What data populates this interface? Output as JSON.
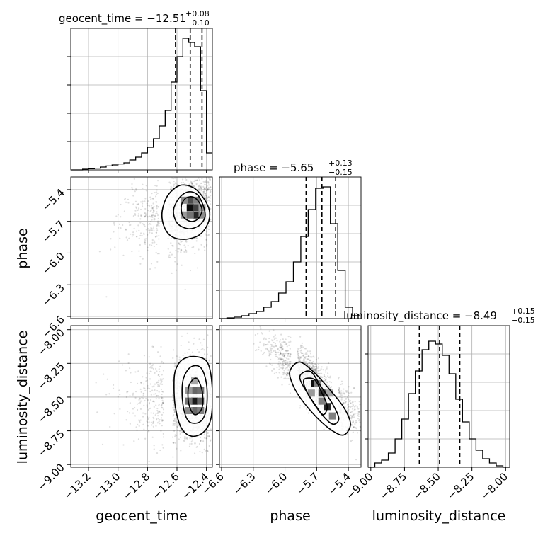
{
  "chart_data": {
    "type": "corner",
    "parameters": [
      "geocent_time",
      "phase",
      "luminosity_distance"
    ],
    "grid": true,
    "diagonal": [
      {
        "param": "geocent_time",
        "title_prefix": "geocent_time = −12.51",
        "upper": "+0.08",
        "lower": "−0.10",
        "median": -12.51,
        "quantiles": [
          -12.61,
          -12.51,
          -12.43
        ],
        "xlim": [
          -13.32,
          -12.36
        ],
        "bins_x": [
          -13.32,
          -13.28,
          -13.24,
          -13.2,
          -13.16,
          -13.12,
          -13.08,
          -13.04,
          -13.0,
          -12.96,
          -12.92,
          -12.88,
          -12.84,
          -12.8,
          -12.76,
          -12.72,
          -12.68,
          -12.64,
          -12.6,
          -12.56,
          -12.52,
          -12.48,
          -12.44,
          -12.4,
          -12.36
        ],
        "counts": [
          0,
          0,
          0.5,
          0.8,
          1.2,
          2,
          2.8,
          3.5,
          4.2,
          5,
          7,
          9,
          12,
          16,
          22,
          31,
          42,
          62,
          80,
          93,
          90,
          87,
          56,
          12
        ],
        "ymax": 100
      },
      {
        "param": "phase",
        "title_prefix": "phase = −5.65",
        "upper": "+0.13",
        "lower": "−0.15",
        "median": -5.65,
        "quantiles": [
          -5.8,
          -5.65,
          -5.52
        ],
        "xlim": [
          -6.62,
          -5.28
        ],
        "bins_x": [
          -6.62,
          -6.55,
          -6.48,
          -6.41,
          -6.34,
          -6.27,
          -6.2,
          -6.13,
          -6.06,
          -5.99,
          -5.92,
          -5.85,
          -5.78,
          -5.71,
          -5.64,
          -5.57,
          -5.5,
          -5.43,
          -5.36,
          -5.29
        ],
        "counts": [
          0,
          0.5,
          1,
          2,
          3.5,
          5,
          8,
          12,
          18,
          26,
          40,
          58,
          77,
          92,
          93,
          67,
          34,
          8,
          2
        ],
        "ymax": 100
      },
      {
        "param": "luminosity_distance",
        "title_prefix": "luminosity_distance = −8.49",
        "upper": "+0.15",
        "lower": "−0.15",
        "median": -8.49,
        "quantiles": [
          -8.64,
          -8.49,
          -8.34
        ],
        "xlim": [
          -9.02,
          -7.97
        ],
        "bins_x": [
          -9.02,
          -8.97,
          -8.92,
          -8.87,
          -8.82,
          -8.77,
          -8.72,
          -8.67,
          -8.62,
          -8.57,
          -8.52,
          -8.47,
          -8.42,
          -8.37,
          -8.32,
          -8.27,
          -8.22,
          -8.17,
          -8.12,
          -8.07,
          -8.02,
          -7.97
        ],
        "counts": [
          0,
          3,
          5,
          10,
          20,
          34,
          52,
          68,
          83,
          89,
          87,
          79,
          66,
          48,
          32,
          20,
          12,
          6,
          3,
          1,
          0
        ],
        "ymax": 100
      }
    ],
    "axes": {
      "geocent_time": {
        "ticks": [
          -13.2,
          -13.0,
          -12.8,
          -12.6,
          -12.4
        ],
        "labels": [
          "−13.2",
          "−13.0",
          "−12.8",
          "−12.6",
          "−12.4"
        ]
      },
      "phase": {
        "ticks": [
          -6.6,
          -6.3,
          -6.0,
          -5.7,
          -5.4
        ],
        "labels": [
          "−6.6",
          "−6.3",
          "−6.0",
          "−5.7",
          "−5.4"
        ]
      },
      "luminosity_distance": {
        "ticks": [
          -9.0,
          -8.75,
          -8.5,
          -8.25,
          -8.0
        ],
        "labels": [
          "−9.00",
          "−8.75",
          "−8.50",
          "−8.25",
          "−8.00"
        ]
      }
    },
    "axis_labels": {
      "geocent_time": "geocent_time",
      "phase": "phase",
      "luminosity_distance": "luminosity_distance"
    },
    "panels_2d": [
      {
        "x": "geocent_time",
        "y": "phase",
        "peak": [
          -12.51,
          -5.57
        ],
        "contours": [
          [
            [
              -12.7,
              -5.6
            ],
            [
              -12.66,
              -5.45
            ],
            [
              -12.58,
              -5.36
            ],
            [
              -12.49,
              -5.38
            ],
            [
              -12.42,
              -5.48
            ],
            [
              -12.38,
              -5.6
            ],
            [
              -12.39,
              -5.72
            ],
            [
              -12.45,
              -5.83
            ],
            [
              -12.55,
              -5.87
            ],
            [
              -12.64,
              -5.84
            ],
            [
              -12.69,
              -5.74
            ]
          ],
          [
            [
              -12.62,
              -5.57
            ],
            [
              -12.58,
              -5.47
            ],
            [
              -12.52,
              -5.42
            ],
            [
              -12.46,
              -5.45
            ],
            [
              -12.42,
              -5.56
            ],
            [
              -12.41,
              -5.66
            ],
            [
              -12.45,
              -5.74
            ],
            [
              -12.52,
              -5.77
            ],
            [
              -12.59,
              -5.73
            ],
            [
              -12.62,
              -5.65
            ]
          ],
          [
            [
              -12.57,
              -5.55
            ],
            [
              -12.54,
              -5.48
            ],
            [
              -12.49,
              -5.47
            ],
            [
              -12.45,
              -5.52
            ],
            [
              -12.43,
              -5.6
            ],
            [
              -12.46,
              -5.68
            ],
            [
              -12.51,
              -5.7
            ],
            [
              -12.56,
              -5.65
            ]
          ]
        ],
        "cells": [
          [
            -12.51,
            -5.57,
            0.95
          ],
          [
            -12.47,
            -5.57,
            0.75
          ],
          [
            -12.51,
            -5.5,
            0.7
          ],
          [
            -12.47,
            -5.64,
            0.85
          ],
          [
            -12.55,
            -5.5,
            0.45
          ],
          [
            -12.55,
            -5.64,
            0.4
          ],
          [
            -12.43,
            -5.64,
            0.45
          ],
          [
            -12.51,
            -5.64,
            0.55
          ],
          [
            -12.43,
            -5.57,
            0.4
          ],
          [
            -12.47,
            -5.5,
            0.5
          ]
        ],
        "scatter": {
          "n": 1500,
          "sx": 0.15,
          "sy": 0.2,
          "rho": 0.35,
          "bound_x": [
            -13.3,
            -12.37
          ],
          "bound_y": [
            -6.6,
            -5.29
          ]
        }
      },
      {
        "x": "geocent_time",
        "y": "luminosity_distance",
        "peak": [
          -12.48,
          -8.53
        ],
        "contours": [
          [
            [
              -12.61,
              -8.3
            ],
            [
              -12.56,
              -8.22
            ],
            [
              -12.47,
              -8.2
            ],
            [
              -12.39,
              -8.25
            ],
            [
              -12.36,
              -8.45
            ],
            [
              -12.37,
              -8.66
            ],
            [
              -12.42,
              -8.76
            ],
            [
              -12.5,
              -8.79
            ],
            [
              -12.57,
              -8.73
            ],
            [
              -12.61,
              -8.58
            ],
            [
              -12.62,
              -8.42
            ]
          ],
          [
            [
              -12.56,
              -8.38
            ],
            [
              -12.51,
              -8.28
            ],
            [
              -12.44,
              -8.28
            ],
            [
              -12.4,
              -8.4
            ],
            [
              -12.4,
              -8.58
            ],
            [
              -12.44,
              -8.68
            ],
            [
              -12.52,
              -8.68
            ],
            [
              -12.56,
              -8.55
            ]
          ],
          [
            [
              -12.52,
              -8.42
            ],
            [
              -12.47,
              -8.36
            ],
            [
              -12.43,
              -8.45
            ],
            [
              -12.43,
              -8.58
            ],
            [
              -12.48,
              -8.63
            ],
            [
              -12.52,
              -8.55
            ]
          ]
        ],
        "cells": [
          [
            -12.48,
            -8.53,
            0.9
          ],
          [
            -12.44,
            -8.53,
            0.6
          ],
          [
            -12.48,
            -8.45,
            0.6
          ],
          [
            -12.48,
            -8.6,
            0.6
          ],
          [
            -12.52,
            -8.45,
            0.4
          ],
          [
            -12.44,
            -8.45,
            0.55
          ],
          [
            -12.52,
            -8.6,
            0.45
          ],
          [
            -12.44,
            -8.6,
            0.5
          ],
          [
            -12.52,
            -8.53,
            0.55
          ],
          [
            -12.48,
            -8.38,
            0.35
          ]
        ],
        "scatter": {
          "n": 1500,
          "sx": 0.15,
          "sy": 0.17,
          "rho": 0.0,
          "bound_x": [
            -13.3,
            -12.37
          ],
          "bound_y": [
            -9.02,
            -7.97
          ]
        }
      },
      {
        "x": "phase",
        "y": "luminosity_distance",
        "peak": [
          -5.72,
          -8.4
        ],
        "contours": [
          [
            [
              -5.95,
              -8.3
            ],
            [
              -5.86,
              -8.24
            ],
            [
              -5.72,
              -8.32
            ],
            [
              -5.57,
              -8.45
            ],
            [
              -5.44,
              -8.58
            ],
            [
              -5.38,
              -8.7
            ],
            [
              -5.44,
              -8.78
            ],
            [
              -5.55,
              -8.75
            ],
            [
              -5.7,
              -8.65
            ],
            [
              -5.86,
              -8.5
            ],
            [
              -5.94,
              -8.38
            ]
          ],
          [
            [
              -5.86,
              -8.35
            ],
            [
              -5.76,
              -8.31
            ],
            [
              -5.66,
              -8.42
            ],
            [
              -5.55,
              -8.55
            ],
            [
              -5.49,
              -8.66
            ],
            [
              -5.55,
              -8.7
            ],
            [
              -5.66,
              -8.62
            ],
            [
              -5.78,
              -8.48
            ]
          ],
          [
            [
              -5.82,
              -8.37
            ],
            [
              -5.72,
              -8.37
            ],
            [
              -5.65,
              -8.47
            ],
            [
              -5.6,
              -8.57
            ],
            [
              -5.64,
              -8.63
            ],
            [
              -5.72,
              -8.55
            ],
            [
              -5.8,
              -8.45
            ]
          ]
        ],
        "cells": [
          [
            -5.72,
            -8.4,
            0.95
          ],
          [
            -5.65,
            -8.47,
            0.8
          ],
          [
            -5.6,
            -8.57,
            0.85
          ],
          [
            -5.55,
            -8.64,
            0.5
          ],
          [
            -5.69,
            -8.4,
            0.5
          ],
          [
            -5.65,
            -8.53,
            0.5
          ],
          [
            -5.58,
            -8.47,
            0.35
          ],
          [
            -5.75,
            -8.47,
            0.4
          ]
        ],
        "scatter": {
          "n": 1500,
          "sx": 0.16,
          "sy": 0.16,
          "rho": -0.85,
          "bound_x": [
            -6.62,
            -5.28
          ],
          "bound_y": [
            -9.02,
            -7.97
          ]
        }
      }
    ]
  }
}
